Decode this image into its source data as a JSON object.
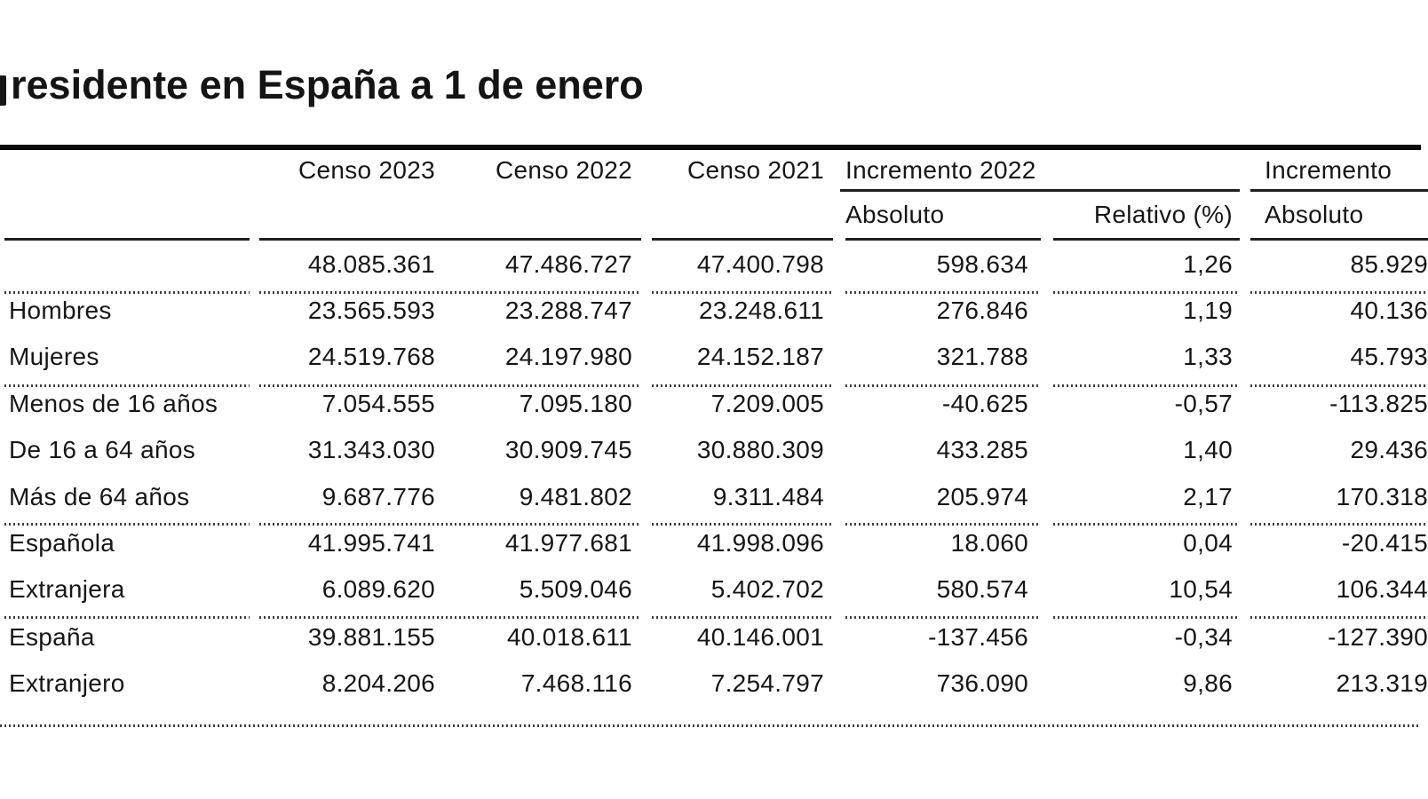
{
  "title": "residente en España a 1 de enero",
  "colors": {
    "background": "#ffffff",
    "text": "#161616",
    "rule": "#0a0a0a",
    "separator_dotted": "#3e3e3e"
  },
  "chart_data": {
    "type": "table",
    "title": "residente en España a 1 de enero",
    "header": {
      "censo_2023": "Censo 2023",
      "censo_2022": "Censo 2022",
      "censo_2021": "Censo 2021",
      "group_incremento_2022": "Incremento 2022",
      "incremento_2022_sub_absoluto": "Absoluto",
      "incremento_2022_sub_relativo": "Relativo (%)",
      "group_incremento_right": "Incremento",
      "incremento_right_sub_absoluto": "Absoluto"
    },
    "rows": [
      {
        "label": "",
        "censo_2023": "48.085.361",
        "censo_2022": "47.486.727",
        "censo_2021": "47.400.798",
        "inc2022_absoluto": "598.634",
        "inc2022_relativo": "1,26",
        "inc_right_absoluto": "85.929"
      },
      {
        "label": "Hombres",
        "censo_2023": "23.565.593",
        "censo_2022": "23.288.747",
        "censo_2021": "23.248.611",
        "inc2022_absoluto": "276.846",
        "inc2022_relativo": "1,19",
        "inc_right_absoluto": "40.136"
      },
      {
        "label": "Mujeres",
        "censo_2023": "24.519.768",
        "censo_2022": "24.197.980",
        "censo_2021": "24.152.187",
        "inc2022_absoluto": "321.788",
        "inc2022_relativo": "1,33",
        "inc_right_absoluto": "45.793"
      },
      {
        "label": "Menos de 16 años",
        "censo_2023": "7.054.555",
        "censo_2022": "7.095.180",
        "censo_2021": "7.209.005",
        "inc2022_absoluto": "-40.625",
        "inc2022_relativo": "-0,57",
        "inc_right_absoluto": "-113.825"
      },
      {
        "label": "De 16 a 64 años",
        "censo_2023": "31.343.030",
        "censo_2022": "30.909.745",
        "censo_2021": "30.880.309",
        "inc2022_absoluto": "433.285",
        "inc2022_relativo": "1,40",
        "inc_right_absoluto": "29.436"
      },
      {
        "label": "Más de 64 años",
        "censo_2023": "9.687.776",
        "censo_2022": "9.481.802",
        "censo_2021": "9.311.484",
        "inc2022_absoluto": "205.974",
        "inc2022_relativo": "2,17",
        "inc_right_absoluto": "170.318"
      },
      {
        "label": "Española",
        "censo_2023": "41.995.741",
        "censo_2022": "41.977.681",
        "censo_2021": "41.998.096",
        "inc2022_absoluto": "18.060",
        "inc2022_relativo": "0,04",
        "inc_right_absoluto": "-20.415"
      },
      {
        "label": "Extranjera",
        "censo_2023": "6.089.620",
        "censo_2022": "5.509.046",
        "censo_2021": "5.402.702",
        "inc2022_absoluto": "580.574",
        "inc2022_relativo": "10,54",
        "inc_right_absoluto": "106.344"
      },
      {
        "label": "España",
        "censo_2023": "39.881.155",
        "censo_2022": "40.018.611",
        "censo_2021": "40.146.001",
        "inc2022_absoluto": "-137.456",
        "inc2022_relativo": "-0,34",
        "inc_right_absoluto": "-127.390"
      },
      {
        "label": "Extranjero",
        "censo_2023": "8.204.206",
        "censo_2022": "7.468.116",
        "censo_2021": "7.254.797",
        "inc2022_absoluto": "736.090",
        "inc2022_relativo": "9,86",
        "inc_right_absoluto": "213.319"
      }
    ]
  }
}
